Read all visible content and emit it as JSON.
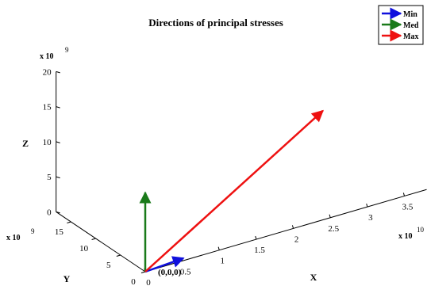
{
  "chart_data": {
    "type": "line",
    "subtype": "3d-quiver",
    "title": "Directions of principal stresses",
    "axes": {
      "x": {
        "label": "X",
        "multiplier_base": "x 10",
        "multiplier_exp": "10",
        "ticks": [
          "0",
          "0.5",
          "1",
          "1.5",
          "2",
          "2.5",
          "3",
          "3.5"
        ],
        "range": [
          0,
          3.8
        ]
      },
      "y": {
        "label": "Y",
        "multiplier_base": "x 10",
        "multiplier_exp": "9",
        "ticks": [
          "0",
          "5",
          "10",
          "15"
        ],
        "range": [
          0,
          18
        ]
      },
      "z": {
        "label": "Z",
        "multiplier_base": "x 10",
        "multiplier_exp": "9",
        "ticks": [
          "0",
          "5",
          "10",
          "15",
          "20"
        ],
        "range": [
          0,
          20
        ]
      }
    },
    "origin_label": "(0,0,0)",
    "legend": {
      "placement": "top-right"
    },
    "series": [
      {
        "name": "Min",
        "color": "#1010dd",
        "start": [
          0,
          0,
          0
        ],
        "end": [
          0.55,
          0.5,
          0
        ]
      },
      {
        "name": "Med",
        "color": "#1a7a1a",
        "start": [
          0,
          0,
          0
        ],
        "end": [
          0,
          0,
          11.3
        ]
      },
      {
        "name": "Max",
        "color": "#ee1111",
        "start": [
          0,
          0,
          0
        ],
        "end": [
          2.7,
          4.5,
          12.5
        ]
      }
    ],
    "grid": false
  }
}
